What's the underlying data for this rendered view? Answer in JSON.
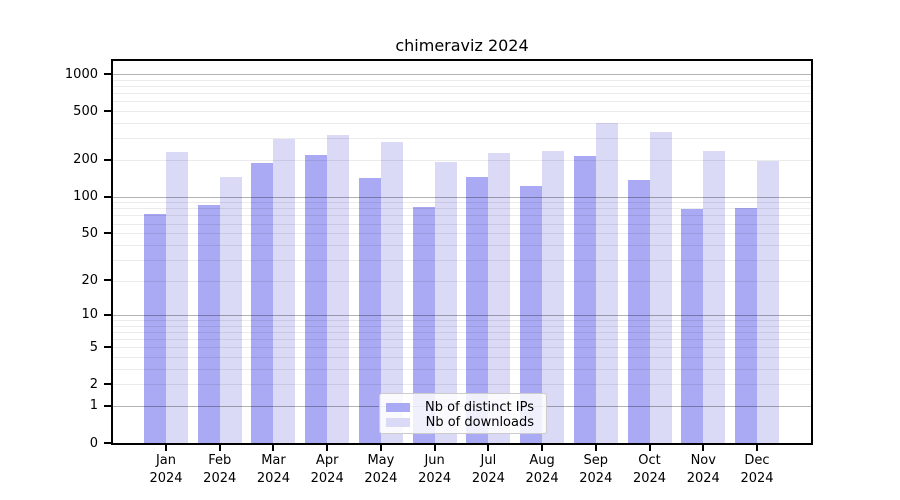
{
  "chart_data": {
    "type": "bar",
    "title": "chimeraviz 2024",
    "categories": [
      "Jan",
      "Feb",
      "Mar",
      "Apr",
      "May",
      "Jun",
      "Jul",
      "Aug",
      "Sep",
      "Oct",
      "Nov",
      "Dec"
    ],
    "category_year": "2024",
    "series": [
      {
        "name": "Nb of distinct IPs",
        "color": "#a9a9f4",
        "values": [
          72,
          85,
          190,
          219,
          142,
          82,
          145,
          122,
          215,
          137,
          79,
          81
        ]
      },
      {
        "name": "Nb of downloads",
        "color": "#dadaf7",
        "values": [
          230,
          146,
          296,
          319,
          280,
          192,
          227,
          237,
          400,
          337,
          236,
          196
        ]
      }
    ],
    "xlabel": "",
    "ylabel": "",
    "yscale": "log1p",
    "ylim": [
      0,
      1280
    ],
    "yticks": [
      0,
      1,
      2,
      5,
      10,
      20,
      50,
      100,
      200,
      500,
      1000
    ],
    "grid": true,
    "legend_position": "lower center"
  },
  "colors": {
    "background": "#ffffff",
    "axis": "#000000",
    "major_grid": "#b3b3b3",
    "minor_grid": "#ebebeb",
    "bar_distinct_ips": "#a9a9f4",
    "bar_downloads": "#dadaf7"
  }
}
